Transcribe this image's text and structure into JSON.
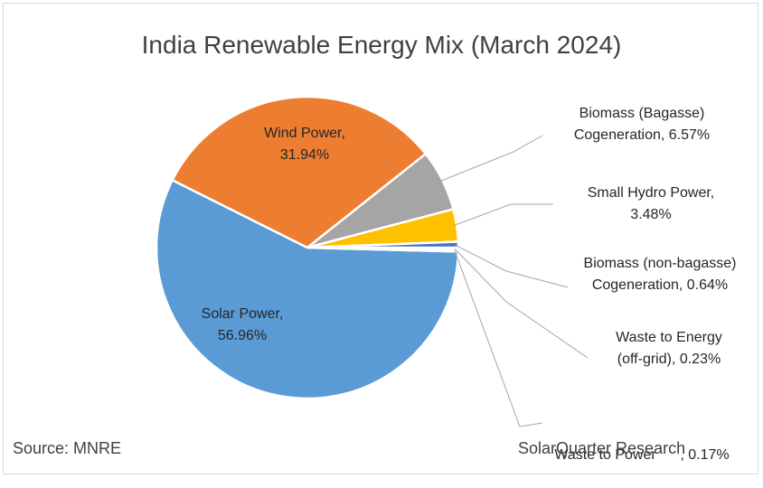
{
  "chart_data": {
    "type": "pie",
    "title": "India Renewable Energy Mix (March 2024)",
    "slices": [
      {
        "name": "Solar Power",
        "value": 56.96,
        "pct_text": "56.96%",
        "color": "#5b9bd5"
      },
      {
        "name": "Wind Power",
        "value": 31.94,
        "pct_text": "31.94%",
        "color": "#ed7d31"
      },
      {
        "name": "Biomass (Bagasse) Cogeneration",
        "value": 6.57,
        "pct_text": "6.57%",
        "color": "#a5a5a5"
      },
      {
        "name": "Small Hydro Power",
        "value": 3.48,
        "pct_text": "3.48%",
        "color": "#ffc000"
      },
      {
        "name": "Biomass (non-bagasse) Cogeneration",
        "value": 0.64,
        "pct_text": "0.64%",
        "color": "#4472c4"
      },
      {
        "name": "Waste to Energy (off-grid)",
        "value": 0.23,
        "pct_text": "0.23%",
        "color": "#70ad47"
      },
      {
        "name": "Waste to Power",
        "value": 0.17,
        "pct_text": "0.17%",
        "color": "#264478"
      }
    ],
    "labels": {
      "solar": {
        "line1": "Solar Power,",
        "line2": "56.96%"
      },
      "wind": {
        "line1": "Wind Power,",
        "line2": "31.94%"
      },
      "bagasse": {
        "line1": "Biomass (Bagasse)",
        "line2": "Cogeneration, 6.57%"
      },
      "hydro": {
        "line1": "Small Hydro Power,",
        "line2": "3.48%"
      },
      "nonbagasse": {
        "line1": "Biomass (non-bagasse)",
        "line2": "Cogeneration, 0.64%"
      },
      "wte": {
        "line1": "Waste to Energy",
        "line2": "(off-grid), 0.23%"
      },
      "wtp": {
        "line1": "Waste to Power      , 0.17%"
      }
    }
  },
  "footer": {
    "source": "Source: MNRE",
    "credit": "SolarQuarter Research"
  }
}
